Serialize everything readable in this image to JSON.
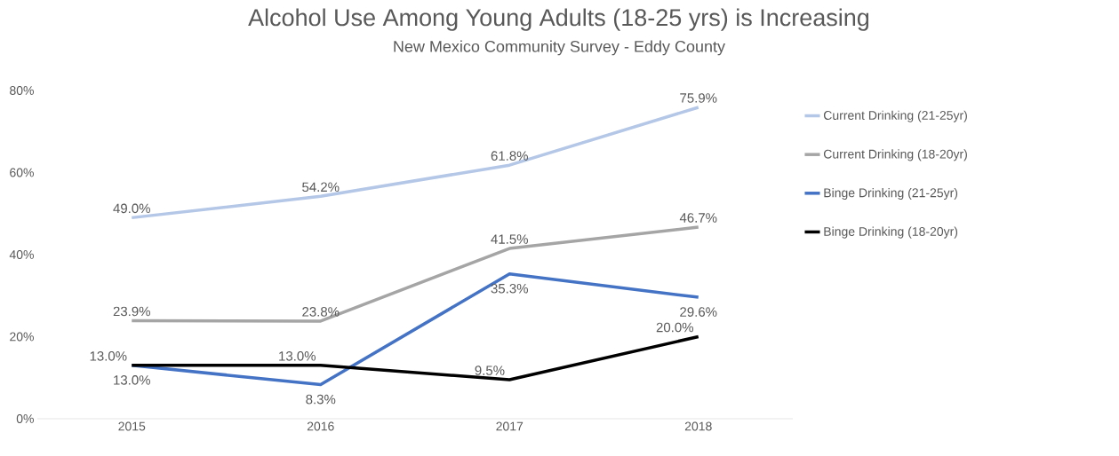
{
  "chart_data": {
    "type": "line",
    "title": "Alcohol Use Among Young Adults (18-25 yrs) is Increasing",
    "subtitle": "New Mexico Community Survey - Eddy County",
    "categories": [
      "2015",
      "2016",
      "2017",
      "2018"
    ],
    "series": [
      {
        "name": "Current Drinking (21-25yr)",
        "color": "#b4c7e7",
        "values": [
          49.0,
          54.2,
          61.8,
          75.9
        ],
        "value_labels": [
          "49.0%",
          "54.2%",
          "61.8%",
          "75.9%"
        ]
      },
      {
        "name": "Current Drinking (18-20yr)",
        "color": "#a5a5a5",
        "values": [
          23.9,
          23.8,
          41.5,
          46.7
        ],
        "value_labels": [
          "23.9%",
          "23.8%",
          "41.5%",
          "46.7%"
        ]
      },
      {
        "name": "Binge Drinking (21-25yr)",
        "color": "#4472c4",
        "values": [
          13.0,
          8.3,
          35.3,
          29.6
        ],
        "value_labels": [
          "13.0%",
          "8.3%",
          "35.3%",
          "29.6%"
        ]
      },
      {
        "name": "Binge Drinking (18-20yr)",
        "color": "#000000",
        "values": [
          13.0,
          13.0,
          9.5,
          20.0
        ],
        "value_labels": [
          "13.0%",
          "13.0%",
          "9.5%",
          "20.0%"
        ]
      }
    ],
    "ylim": [
      0,
      80
    ],
    "yticks": [
      {
        "value": 0,
        "label": "0%"
      },
      {
        "value": 20,
        "label": "20%"
      },
      {
        "value": 40,
        "label": "40%"
      },
      {
        "value": 60,
        "label": "60%"
      },
      {
        "value": 80,
        "label": "80%"
      }
    ],
    "grid": false,
    "legend": "right",
    "marker": "none",
    "line_style": "solid"
  }
}
